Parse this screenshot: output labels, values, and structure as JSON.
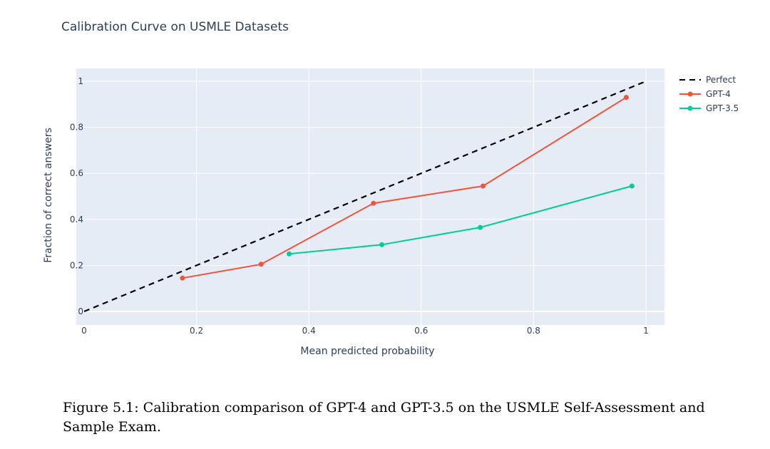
{
  "chart_data": {
    "type": "line",
    "title": "Calibration Curve on USMLE Datasets",
    "xlabel": "Mean predicted probability",
    "ylabel": "Fraction of correct answers",
    "xlim": [
      0,
      1
    ],
    "ylim": [
      0,
      1
    ],
    "x_ticks": [
      "0",
      "0.2",
      "0.4",
      "0.6",
      "0.8",
      "1"
    ],
    "y_ticks": [
      "0",
      "0.2",
      "0.4",
      "0.6",
      "0.8",
      "1"
    ],
    "grid": true,
    "legend_position": "top-right",
    "series": [
      {
        "name": "Perfect",
        "color": "#000000",
        "dash": "dashed",
        "markers": false,
        "x": [
          0,
          1
        ],
        "y": [
          0,
          1
        ]
      },
      {
        "name": "GPT-4",
        "color": "#ef553b",
        "dash": "solid",
        "markers": true,
        "x": [
          0.175,
          0.315,
          0.515,
          0.71,
          0.965
        ],
        "y": [
          0.145,
          0.205,
          0.47,
          0.545,
          0.93
        ]
      },
      {
        "name": "GPT-3.5",
        "color": "#00cc96",
        "dash": "solid",
        "markers": true,
        "x": [
          0.365,
          0.53,
          0.705,
          0.975
        ],
        "y": [
          0.25,
          0.29,
          0.365,
          0.545
        ]
      }
    ]
  },
  "caption": "Figure 5.1: Calibration comparison of GPT-4 and GPT-3.5 on the USMLE Self-Assessment and Sample Exam."
}
